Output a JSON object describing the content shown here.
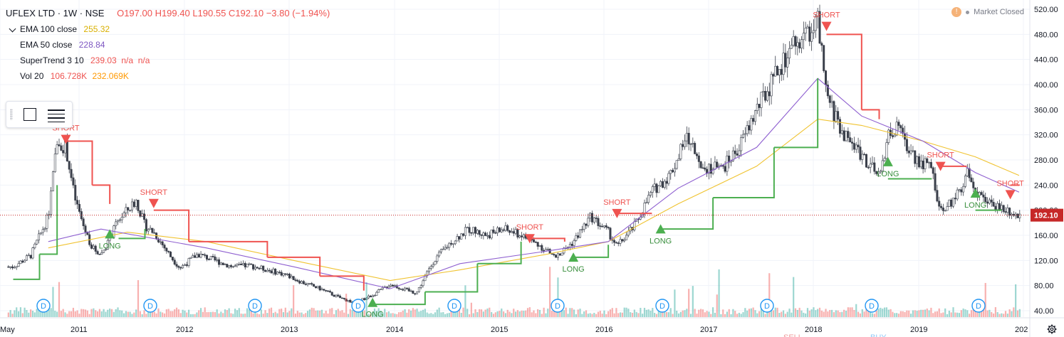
{
  "header": {
    "symbol": "UFLEX LTD · 1W · NSE",
    "ohlc": "O197.00 H199.40 L190.55 C192.10 −3.80 (−1.94%)"
  },
  "indicators": [
    {
      "label": "EMA 100 close",
      "value": "255.32",
      "color": "#d9b000"
    },
    {
      "label": "EMA 50 close",
      "value": "228.84",
      "color": "#7e57c2"
    },
    {
      "label": "SuperTrend 3 10",
      "value": "239.03  n/a  n/a",
      "color": "#ef5350"
    },
    {
      "label": "Vol 20",
      "value": "106.728K",
      "value2": "232.069K",
      "color": "#ef5350",
      "color2": "#ff9800"
    }
  ],
  "status": {
    "icon": "!",
    "text": "Market Closed"
  },
  "colors": {
    "up": "#26a69a",
    "down": "#ef5350",
    "ema100": "#f0c330",
    "ema50": "#8e5fd0",
    "st_up": "#4caf50",
    "st_down": "#ef5350",
    "last_price": "#c62828",
    "grid": "#f0f3fa"
  },
  "chart_data": {
    "type": "candlestick",
    "x_tick_labels": [
      "May",
      "2011",
      "2012",
      "2013",
      "2014",
      "2015",
      "2016",
      "2017",
      "2018",
      "2019",
      "202"
    ],
    "y_tick_labels": [
      "40.00",
      "80.00",
      "120.00",
      "160.00",
      "200.00",
      "240.00",
      "280.00",
      "320.00",
      "360.00",
      "400.00",
      "440.00",
      "480.00",
      "520.00"
    ],
    "ylim": [
      20,
      525
    ],
    "last_price": "192.10",
    "series_close": [
      [
        "2010-05",
        110
      ],
      [
        "2010-07",
        128
      ],
      [
        "2010-09",
        190
      ],
      [
        "2010-10",
        310
      ],
      [
        "2010-11",
        300
      ],
      [
        "2010-12",
        220
      ],
      [
        "2011-01",
        175
      ],
      [
        "2011-02",
        140
      ],
      [
        "2011-03",
        130
      ],
      [
        "2011-04",
        155
      ],
      [
        "2011-05",
        185
      ],
      [
        "2011-06",
        200
      ],
      [
        "2011-07",
        215
      ],
      [
        "2011-08",
        175
      ],
      [
        "2011-09",
        165
      ],
      [
        "2011-10",
        145
      ],
      [
        "2011-11",
        125
      ],
      [
        "2011-12",
        108
      ],
      [
        "2012-02",
        130
      ],
      [
        "2012-04",
        120
      ],
      [
        "2012-06",
        110
      ],
      [
        "2012-08",
        112
      ],
      [
        "2012-10",
        105
      ],
      [
        "2012-12",
        98
      ],
      [
        "2013-02",
        85
      ],
      [
        "2013-04",
        75
      ],
      [
        "2013-06",
        62
      ],
      [
        "2013-08",
        52
      ],
      [
        "2013-10",
        65
      ],
      [
        "2013-12",
        82
      ],
      [
        "2014-02",
        72
      ],
      [
        "2014-03",
        68
      ],
      [
        "2014-05",
        120
      ],
      [
        "2014-07",
        150
      ],
      [
        "2014-09",
        170
      ],
      [
        "2014-11",
        160
      ],
      [
        "2015-01",
        170
      ],
      [
        "2015-03",
        160
      ],
      [
        "2015-05",
        145
      ],
      [
        "2015-07",
        125
      ],
      [
        "2015-09",
        150
      ],
      [
        "2015-11",
        190
      ],
      [
        "2016-01",
        165
      ],
      [
        "2016-02",
        142
      ],
      [
        "2016-04",
        175
      ],
      [
        "2016-06",
        230
      ],
      [
        "2016-08",
        255
      ],
      [
        "2016-10",
        315
      ],
      [
        "2016-12",
        270
      ],
      [
        "2017-02",
        265
      ],
      [
        "2017-04",
        300
      ],
      [
        "2017-06",
        360
      ],
      [
        "2017-08",
        410
      ],
      [
        "2017-10",
        455
      ],
      [
        "2017-12",
        485
      ],
      [
        "2018-01",
        500
      ],
      [
        "2018-02",
        380
      ],
      [
        "2018-04",
        320
      ],
      [
        "2018-06",
        290
      ],
      [
        "2018-08",
        250
      ],
      [
        "2018-09",
        320
      ],
      [
        "2018-10",
        330
      ],
      [
        "2018-12",
        285
      ],
      [
        "2019-02",
        265
      ],
      [
        "2019-03",
        195
      ],
      [
        "2019-05",
        225
      ],
      [
        "2019-06",
        260
      ],
      [
        "2019-08",
        215
      ],
      [
        "2019-10",
        205
      ],
      [
        "2019-12",
        192.1
      ]
    ],
    "ema100": [
      [
        "2010-09",
        140
      ],
      [
        "2011-06",
        165
      ],
      [
        "2012-03",
        150
      ],
      [
        "2013-01",
        120
      ],
      [
        "2013-12",
        88
      ],
      [
        "2014-08",
        105
      ],
      [
        "2015-06",
        130
      ],
      [
        "2016-01",
        150
      ],
      [
        "2016-09",
        210
      ],
      [
        "2017-06",
        270
      ],
      [
        "2018-01",
        345
      ],
      [
        "2018-06",
        335
      ],
      [
        "2019-01",
        310
      ],
      [
        "2019-07",
        285
      ],
      [
        "2019-12",
        255.32
      ]
    ],
    "ema50": [
      [
        "2010-09",
        150
      ],
      [
        "2011-03",
        170
      ],
      [
        "2012-03",
        140
      ],
      [
        "2013-01",
        110
      ],
      [
        "2013-12",
        75
      ],
      [
        "2014-08",
        115
      ],
      [
        "2015-06",
        135
      ],
      [
        "2016-01",
        150
      ],
      [
        "2016-09",
        235
      ],
      [
        "2017-06",
        300
      ],
      [
        "2018-01",
        410
      ],
      [
        "2018-06",
        350
      ],
      [
        "2019-01",
        310
      ],
      [
        "2019-07",
        260
      ],
      [
        "2019-12",
        228.84
      ]
    ],
    "supertrend": [
      [
        "2010-05",
        90,
        "up"
      ],
      [
        "2010-08",
        130,
        "up"
      ],
      [
        "2010-10",
        240,
        "up"
      ],
      [
        "2010-11",
        310,
        "dn"
      ],
      [
        "2011-02",
        240,
        "dn"
      ],
      [
        "2011-04",
        210,
        "dn"
      ],
      [
        "2011-05",
        155,
        "up"
      ],
      [
        "2011-08",
        170,
        "up"
      ],
      [
        "2011-09",
        200,
        "dn"
      ],
      [
        "2012-01",
        150,
        "dn"
      ],
      [
        "2012-10",
        125,
        "dn"
      ],
      [
        "2013-04",
        95,
        "dn"
      ],
      [
        "2013-09",
        72,
        "dn"
      ],
      [
        "2013-10",
        50,
        "up"
      ],
      [
        "2014-04",
        70,
        "up"
      ],
      [
        "2014-10",
        115,
        "up"
      ],
      [
        "2015-03",
        150,
        "up"
      ],
      [
        "2015-04",
        155,
        "dn"
      ],
      [
        "2015-08",
        150,
        "dn"
      ],
      [
        "2015-09",
        125,
        "up"
      ],
      [
        "2016-01",
        145,
        "up"
      ],
      [
        "2016-02",
        195,
        "dn"
      ],
      [
        "2016-06",
        195,
        "dn"
      ],
      [
        "2016-07",
        170,
        "up"
      ],
      [
        "2017-01",
        220,
        "up"
      ],
      [
        "2017-08",
        300,
        "up"
      ],
      [
        "2018-01",
        410,
        "up"
      ],
      [
        "2018-02",
        480,
        "dn"
      ],
      [
        "2018-06",
        360,
        "dn"
      ],
      [
        "2018-08",
        345,
        "dn"
      ],
      [
        "2018-09",
        250,
        "up"
      ],
      [
        "2019-02",
        250,
        "up"
      ],
      [
        "2019-03",
        270,
        "dn"
      ],
      [
        "2019-06",
        270,
        "dn"
      ],
      [
        "2019-07",
        200,
        "up"
      ],
      [
        "2019-10",
        200,
        "up"
      ],
      [
        "2019-11",
        240,
        "dn"
      ],
      [
        "2019-12",
        239.03,
        "dn"
      ]
    ],
    "signals": [
      {
        "date": "2010-11",
        "type": "SHORT",
        "price": 320
      },
      {
        "date": "2011-04",
        "type": "LONG",
        "price": 155
      },
      {
        "date": "2011-09",
        "type": "SHORT",
        "price": 218
      },
      {
        "date": "2013-10",
        "type": "LONG",
        "price": 46
      },
      {
        "date": "2015-04",
        "type": "SHORT",
        "price": 162
      },
      {
        "date": "2015-09",
        "type": "LONG",
        "price": 118
      },
      {
        "date": "2016-02",
        "type": "SHORT",
        "price": 202
      },
      {
        "date": "2016-07",
        "type": "LONG",
        "price": 163
      },
      {
        "date": "2018-02",
        "type": "SHORT",
        "price": 500
      },
      {
        "date": "2018-09",
        "type": "LONG",
        "price": 270
      },
      {
        "date": "2019-03",
        "type": "SHORT",
        "price": 277
      },
      {
        "date": "2019-07",
        "type": "LONG",
        "price": 220
      },
      {
        "date": "2019-11",
        "type": "SHORT",
        "price": 232
      }
    ],
    "dividend_markers": [
      "D",
      "D",
      "D",
      "D",
      "D",
      "D",
      "D",
      "D",
      "D",
      "D",
      "D"
    ],
    "bottom_labels": [
      "SELL",
      "BUY"
    ]
  }
}
